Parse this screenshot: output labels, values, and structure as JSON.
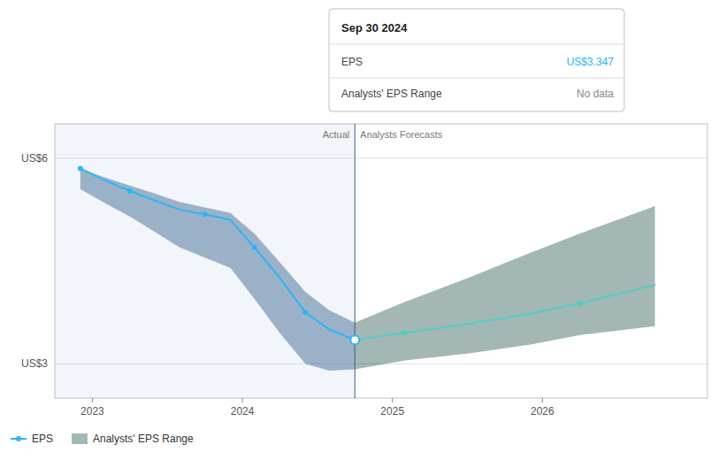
{
  "chart_data": {
    "type": "line",
    "xlim": [
      2022.75,
      2027.1
    ],
    "xticks": [
      2023,
      2024,
      2025,
      2026
    ],
    "ylim": [
      2.5,
      6.5
    ],
    "yticks": [
      {
        "value": 3.0,
        "label": "US$3"
      },
      {
        "value": 6.0,
        "label": "US$6"
      }
    ],
    "grid": true,
    "legend": "bottom-left",
    "divider": {
      "x": 2024.75,
      "color": "#3a6080",
      "labels": [
        "Actual",
        "Analysts Forecasts"
      ]
    },
    "series": [
      {
        "name": "EPS",
        "type": "line",
        "color": "#29b6f6",
        "x": [
          2022.92,
          2023.08,
          2023.25,
          2023.42,
          2023.58,
          2023.75,
          2023.92,
          2024.08,
          2024.25,
          2024.42,
          2024.58,
          2024.75
        ],
        "values": [
          5.85,
          5.68,
          5.52,
          5.38,
          5.25,
          5.18,
          5.1,
          4.7,
          4.25,
          3.75,
          3.5,
          3.35
        ]
      },
      {
        "type": "area",
        "color": "#1a4a80",
        "x": [
          2022.92,
          2023.08,
          2023.25,
          2023.42,
          2023.58,
          2023.75,
          2023.92,
          2024.08,
          2024.25,
          2024.42,
          2024.58,
          2024.75
        ],
        "upper": [
          5.85,
          5.72,
          5.6,
          5.48,
          5.36,
          5.28,
          5.2,
          4.9,
          4.48,
          4.05,
          3.78,
          3.6
        ],
        "lower": [
          5.55,
          5.35,
          5.15,
          4.92,
          4.7,
          4.55,
          4.4,
          3.95,
          3.45,
          3.0,
          2.9,
          2.92
        ]
      },
      {
        "type": "line",
        "color": "#4dd0c4",
        "x": [
          2024.75,
          2025.08,
          2025.5,
          2025.92,
          2026.25,
          2026.75
        ],
        "values": [
          3.35,
          3.45,
          3.58,
          3.73,
          3.88,
          4.15
        ]
      },
      {
        "name": "Analysts' EPS Range",
        "type": "area",
        "color": "#1a4a44",
        "x": [
          2024.75,
          2025.08,
          2025.5,
          2025.92,
          2026.25,
          2026.75
        ],
        "upper": [
          3.6,
          3.9,
          4.25,
          4.62,
          4.9,
          5.3
        ],
        "lower": [
          2.92,
          3.05,
          3.15,
          3.28,
          3.42,
          3.55
        ]
      },
      {
        "type": "scatter",
        "color": "#29b6f6",
        "marker": "circle",
        "x": [
          2022.92,
          2023.25,
          2023.75,
          2024.08,
          2024.42
        ],
        "values": [
          5.85,
          5.52,
          5.18,
          4.7,
          3.75
        ]
      },
      {
        "type": "scatter",
        "color": "#29b6f6",
        "marker": "hollow_circle",
        "x": [
          2024.75
        ],
        "values": [
          3.35
        ]
      },
      {
        "type": "scatter",
        "color": "#4dd0c4",
        "marker": "circle",
        "x": [
          2025.08,
          2026.25
        ],
        "values": [
          3.45,
          3.88
        ]
      }
    ],
    "tooltip": {
      "title": "Sep 30 2024",
      "rows": [
        {
          "label": "EPS",
          "value": "US$3.347",
          "color": "#29b6f6"
        },
        {
          "label": "Analysts' EPS Range",
          "value": "No data",
          "color": "#888888"
        }
      ]
    }
  }
}
